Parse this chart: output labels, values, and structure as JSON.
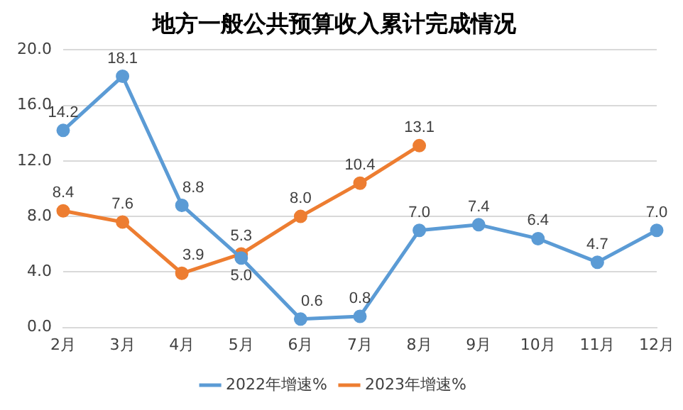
{
  "chart_data": {
    "type": "line",
    "title": "地方一般公共预算收入累计完成情况",
    "categories": [
      "2月",
      "3月",
      "4月",
      "5月",
      "6月",
      "7月",
      "8月",
      "9月",
      "10月",
      "11月",
      "12月"
    ],
    "series": [
      {
        "name": "2022年增速%",
        "color": "#5b9bd5",
        "values": [
          14.2,
          18.1,
          8.8,
          5.0,
          0.6,
          0.8,
          7.0,
          7.4,
          6.4,
          4.7,
          7.0
        ],
        "value_labels": [
          "14.2",
          "18.1",
          "8.8",
          "5.0",
          "0.6",
          "0.8",
          "7.0",
          "7.4",
          "6.4",
          "4.7",
          "7.0"
        ]
      },
      {
        "name": "2023年增速%",
        "color": "#ed7d31",
        "values": [
          8.4,
          7.6,
          3.9,
          5.3,
          8.0,
          10.4,
          13.1,
          null,
          null,
          null,
          null
        ],
        "value_labels": [
          "8.4",
          "7.6",
          "3.9",
          "5.3",
          "8.0",
          "10.4",
          "13.1",
          null,
          null,
          null,
          null
        ]
      }
    ],
    "ylim": [
      0,
      20
    ],
    "yticks": [
      {
        "value": 0,
        "label": "0.0"
      },
      {
        "value": 4,
        "label": "4.0"
      },
      {
        "value": 8,
        "label": "8.0"
      },
      {
        "value": 12,
        "label": "12.0"
      },
      {
        "value": 16,
        "label": "16.0"
      },
      {
        "value": 20,
        "label": "20.0"
      }
    ],
    "grid": "y",
    "legend": "bottom",
    "marker": "circle",
    "line_style": "solid"
  }
}
